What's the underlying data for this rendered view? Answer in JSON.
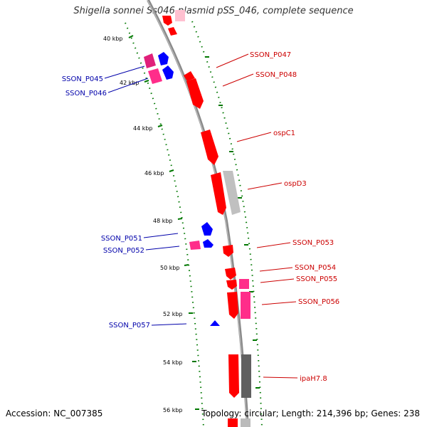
{
  "title": "Shigella sonnei Ss046 plasmid pSS_046, complete sequence",
  "footer": {
    "accession": "Accession: NC_007385",
    "topology": "Topology: circular; Length: 214,396 bp; Genes: 238"
  },
  "colors": {
    "forward_gene": "#ff0000",
    "reverse_gene": "#0000ff",
    "pseudo_gene": "#ff2d8a",
    "backbone": "#888888",
    "tick": "#007700",
    "label_forward": "#cc0000",
    "label_reverse": "#0000aa"
  },
  "scale_ticks": [
    "40 kbp",
    "42 kbp",
    "44 kbp",
    "46 kbp",
    "48 kbp",
    "50 kbp",
    "52 kbp",
    "54 kbp",
    "56 kbp"
  ],
  "gene_labels": [
    {
      "text": "SSON_P045",
      "strand": "reverse"
    },
    {
      "text": "SSON_P046",
      "strand": "reverse"
    },
    {
      "text": "SSON_P047",
      "strand": "forward"
    },
    {
      "text": "SSON_P048",
      "strand": "forward"
    },
    {
      "text": "ospC1",
      "strand": "forward"
    },
    {
      "text": "ospD3",
      "strand": "forward"
    },
    {
      "text": "SSON_P051",
      "strand": "reverse"
    },
    {
      "text": "SSON_P052",
      "strand": "reverse"
    },
    {
      "text": "SSON_P053",
      "strand": "forward"
    },
    {
      "text": "SSON_P054",
      "strand": "forward"
    },
    {
      "text": "SSON_P055",
      "strand": "forward"
    },
    {
      "text": "SSON_P056",
      "strand": "forward"
    },
    {
      "text": "SSON_P057",
      "strand": "reverse"
    },
    {
      "text": "ipaH7.8",
      "strand": "forward"
    }
  ]
}
